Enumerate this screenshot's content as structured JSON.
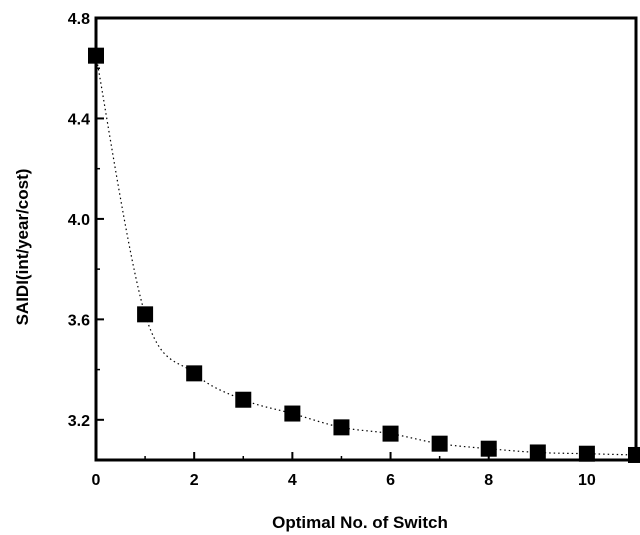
{
  "chart_data": {
    "type": "line",
    "xlabel": "Optimal No. of Switch",
    "ylabel": "SAIDI(int/year/cost)",
    "xlim": [
      0,
      11
    ],
    "ylim": [
      3.04,
      4.8
    ],
    "x_ticks": [
      "0",
      "2",
      "4",
      "6",
      "8",
      "10"
    ],
    "y_ticks": [
      "3.2",
      "3.6",
      "4.0",
      "4.4",
      "4.8"
    ],
    "x_tick_values": [
      0,
      2,
      4,
      6,
      8,
      10
    ],
    "y_tick_values": [
      3.2,
      3.6,
      4.0,
      4.4,
      4.8
    ],
    "grid": false,
    "series": [
      {
        "marker": "square",
        "line_style": "dotted",
        "color": "#000000",
        "x": [
          0,
          1,
          2,
          3,
          4,
          5,
          6,
          7,
          8,
          9,
          10,
          11
        ],
        "y": [
          4.65,
          3.62,
          3.385,
          3.28,
          3.225,
          3.17,
          3.145,
          3.105,
          3.085,
          3.07,
          3.065,
          3.06
        ]
      }
    ]
  }
}
